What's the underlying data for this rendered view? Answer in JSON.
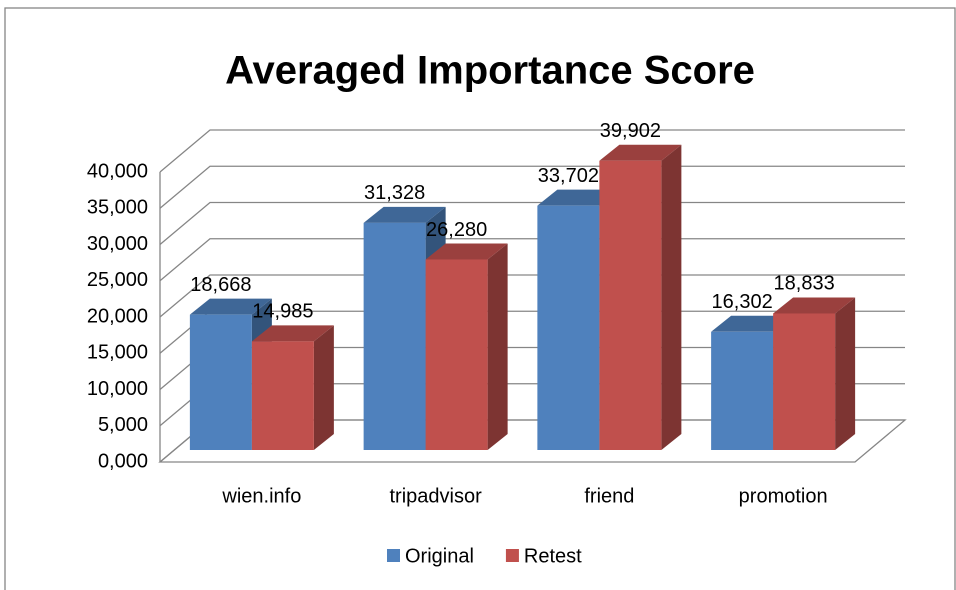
{
  "chart_data": {
    "type": "bar3d",
    "title": "Averaged Importance Score",
    "categories": [
      "wien.info",
      "tripadvisor",
      "friend",
      "promotion"
    ],
    "series": [
      {
        "name": "Original",
        "color": "#4f81bd",
        "values": [
          18.668,
          31.328,
          33.702,
          16.302
        ],
        "value_labels": [
          "18,668",
          "31,328",
          "33,702",
          "16,302"
        ]
      },
      {
        "name": "Retest",
        "color": "#c0504d",
        "values": [
          14.985,
          26.28,
          39.902,
          18.833
        ],
        "value_labels": [
          "14,985",
          "26,280",
          "39,902",
          "18,833"
        ]
      }
    ],
    "ylim": [
      0,
      40
    ],
    "yticks": [
      {
        "value": 0,
        "label": "0,000"
      },
      {
        "value": 5,
        "label": "5,000"
      },
      {
        "value": 10,
        "label": "10,000"
      },
      {
        "value": 15,
        "label": "15,000"
      },
      {
        "value": 20,
        "label": "20,000"
      },
      {
        "value": 25,
        "label": "25,000"
      },
      {
        "value": 30,
        "label": "30,000"
      },
      {
        "value": 35,
        "label": "35,000"
      },
      {
        "value": 40,
        "label": "40,000"
      }
    ],
    "grid": true,
    "legend": "bottom"
  }
}
